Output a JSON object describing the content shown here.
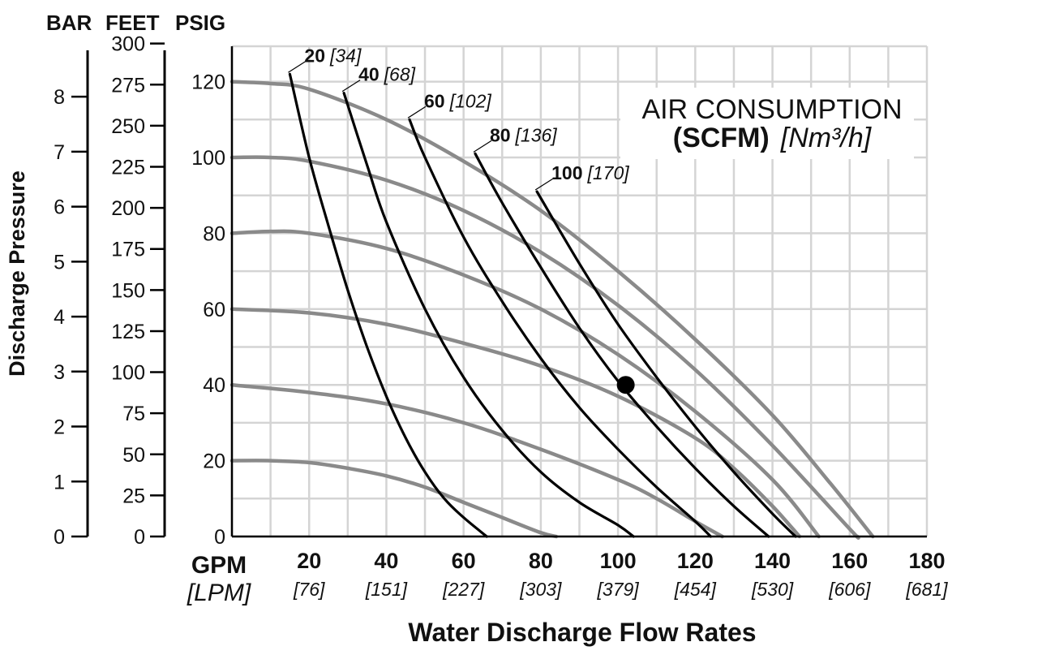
{
  "chart_data": {
    "type": "line",
    "title": "AIR CONSUMPTION",
    "title_units_bold": "(SCFM)",
    "title_units_italic": "[Nm³/h]",
    "xlabel": "Water Discharge Flow Rates",
    "ylabel": "Discharge Pressure",
    "xunit_primary": "GPM",
    "xunit_secondary": "[LPM]",
    "axis_headers": {
      "bar": "BAR",
      "feet": "FEET",
      "psig": "PSIG"
    },
    "xlim": [
      0,
      180
    ],
    "ylim": [
      0,
      125
    ],
    "grid": true,
    "x_ticks": [
      {
        "gpm": "20",
        "lpm": "[76]"
      },
      {
        "gpm": "40",
        "lpm": "[151]"
      },
      {
        "gpm": "60",
        "lpm": "[227]"
      },
      {
        "gpm": "80",
        "lpm": "[303]"
      },
      {
        "gpm": "100",
        "lpm": "[379]"
      },
      {
        "gpm": "120",
        "lpm": "[454]"
      },
      {
        "gpm": "140",
        "lpm": "[530]"
      },
      {
        "gpm": "160",
        "lpm": "[606]"
      },
      {
        "gpm": "180",
        "lpm": "[681]"
      }
    ],
    "psig_ticks": [
      "0",
      "20",
      "40",
      "60",
      "80",
      "100",
      "120"
    ],
    "feet_ticks": [
      "0",
      "25",
      "50",
      "75",
      "100",
      "125",
      "150",
      "175",
      "200",
      "225",
      "250",
      "275",
      "300"
    ],
    "bar_ticks": [
      "0",
      "1",
      "2",
      "3",
      "4",
      "5",
      "6",
      "7",
      "8"
    ],
    "pump_curves": [
      {
        "pressure_psig": 20,
        "points": [
          [
            0,
            20
          ],
          [
            10,
            20
          ],
          [
            20,
            19.5
          ],
          [
            30,
            18
          ],
          [
            40,
            16
          ],
          [
            50,
            13
          ],
          [
            60,
            9
          ],
          [
            70,
            5
          ],
          [
            80,
            1
          ],
          [
            84,
            0
          ]
        ]
      },
      {
        "pressure_psig": 40,
        "points": [
          [
            0,
            40
          ],
          [
            20,
            38
          ],
          [
            40,
            35
          ],
          [
            60,
            30
          ],
          [
            80,
            23
          ],
          [
            100,
            15
          ],
          [
            110,
            10
          ],
          [
            120,
            4
          ],
          [
            127,
            0
          ]
        ]
      },
      {
        "pressure_psig": 60,
        "points": [
          [
            0,
            60
          ],
          [
            20,
            59
          ],
          [
            40,
            56
          ],
          [
            60,
            51
          ],
          [
            80,
            45
          ],
          [
            100,
            37
          ],
          [
            120,
            26
          ],
          [
            130,
            18
          ],
          [
            140,
            8
          ],
          [
            147,
            0
          ]
        ]
      },
      {
        "pressure_psig": 80,
        "points": [
          [
            0,
            80
          ],
          [
            10,
            80.5
          ],
          [
            20,
            80
          ],
          [
            40,
            76
          ],
          [
            60,
            69
          ],
          [
            80,
            60
          ],
          [
            100,
            48
          ],
          [
            120,
            33
          ],
          [
            140,
            15
          ],
          [
            152,
            0
          ]
        ]
      },
      {
        "pressure_psig": 100,
        "points": [
          [
            0,
            100
          ],
          [
            10,
            100
          ],
          [
            20,
            99
          ],
          [
            40,
            94
          ],
          [
            60,
            86
          ],
          [
            80,
            75
          ],
          [
            100,
            61
          ],
          [
            120,
            44
          ],
          [
            140,
            24
          ],
          [
            160,
            2
          ],
          [
            162,
            0
          ]
        ]
      },
      {
        "pressure_psig": 120,
        "points": [
          [
            0,
            120
          ],
          [
            10,
            119.5
          ],
          [
            20,
            118
          ],
          [
            40,
            110
          ],
          [
            60,
            99
          ],
          [
            80,
            86
          ],
          [
            100,
            70
          ],
          [
            120,
            52
          ],
          [
            140,
            32
          ],
          [
            155,
            14
          ],
          [
            166,
            0
          ]
        ]
      }
    ],
    "air_consumption_curves": [
      {
        "scfm": "20",
        "nm3h": "[34]",
        "points": [
          [
            15,
            122
          ],
          [
            20,
            100
          ],
          [
            25,
            82
          ],
          [
            30,
            65
          ],
          [
            35,
            50
          ],
          [
            40,
            37
          ],
          [
            45,
            26
          ],
          [
            50,
            17
          ],
          [
            55,
            10
          ],
          [
            60,
            5
          ],
          [
            66,
            0
          ]
        ]
      },
      {
        "scfm": "40",
        "nm3h": "[68]",
        "points": [
          [
            29,
            117
          ],
          [
            35,
            98
          ],
          [
            40,
            83
          ],
          [
            50,
            60
          ],
          [
            60,
            42
          ],
          [
            70,
            28
          ],
          [
            80,
            17
          ],
          [
            90,
            9
          ],
          [
            100,
            3
          ],
          [
            104,
            0
          ]
        ]
      },
      {
        "scfm": "60",
        "nm3h": "[102]",
        "points": [
          [
            46,
            110
          ],
          [
            50,
            100
          ],
          [
            60,
            79
          ],
          [
            70,
            62
          ],
          [
            80,
            47
          ],
          [
            90,
            34
          ],
          [
            100,
            23
          ],
          [
            110,
            13
          ],
          [
            120,
            4
          ],
          [
            124,
            0
          ]
        ]
      },
      {
        "scfm": "80",
        "nm3h": "[136]",
        "points": [
          [
            63,
            101
          ],
          [
            70,
            88
          ],
          [
            80,
            71
          ],
          [
            90,
            55
          ],
          [
            100,
            41
          ],
          [
            110,
            29
          ],
          [
            120,
            18
          ],
          [
            130,
            8
          ],
          [
            139,
            0
          ]
        ]
      },
      {
        "scfm": "100",
        "nm3h": "[170]",
        "points": [
          [
            79,
            91
          ],
          [
            90,
            72
          ],
          [
            100,
            56
          ],
          [
            110,
            42
          ],
          [
            120,
            29
          ],
          [
            130,
            17
          ],
          [
            140,
            6
          ],
          [
            146,
            0
          ]
        ]
      }
    ],
    "marker_point": [
      102,
      40
    ]
  }
}
